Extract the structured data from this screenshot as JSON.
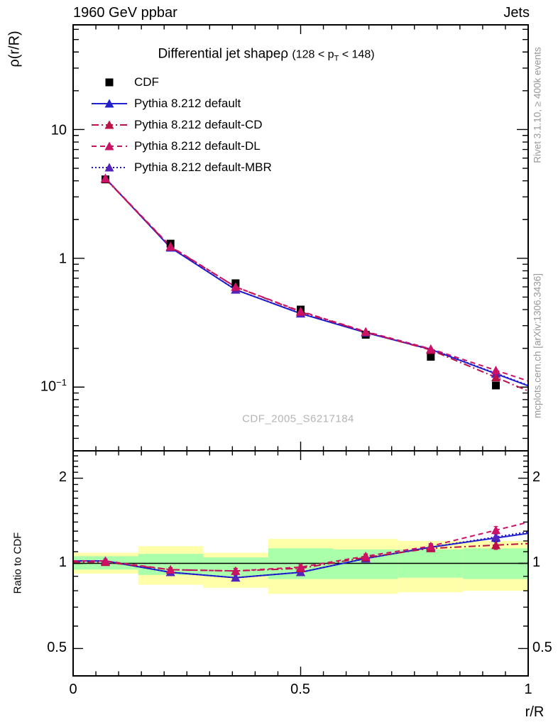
{
  "header": {
    "left": "1960 GeV ppbar",
    "right": "Jets"
  },
  "side_notes": {
    "rivet": "Rivet 3.1.10, ≥ 400k events",
    "mcplots": "mcplots.cern.ch [arXiv:1306.3436]"
  },
  "watermark": "CDF_2005_S6217184",
  "title": {
    "main": "Differential jet shapeρ",
    "range_pre": "(128 < p",
    "range_sub": "T",
    "range_post": " < 148)"
  },
  "axes": {
    "y_label": "ρ(r/R)",
    "ratio_label": "Ratio to CDF",
    "x_label": "r/R",
    "main_y_ticks": [
      {
        "text": "10",
        "sup": ""
      },
      {
        "text": "1",
        "sup": ""
      },
      {
        "text": "10",
        "sup": "−1"
      }
    ],
    "ratio_y_ticks": [
      "2",
      "1",
      "0.5"
    ],
    "x_ticks": [
      "0",
      "0.5",
      "1"
    ]
  },
  "chart_data": {
    "type": "line",
    "title": "Differential jet shape rho (128 < pT < 148)",
    "xlabel": "r/R",
    "ylabel": "rho(r/R)",
    "ylabel_ratio": "Ratio to CDF",
    "xlim": [
      0,
      1
    ],
    "ylim_main": [
      0.032,
      65
    ],
    "ylim_ratio": [
      0.4,
      2.5
    ],
    "yscale_main": "log",
    "yscale_ratio": "log",
    "grid": false,
    "legend_position": "top-left",
    "x": [
      0.071,
      0.214,
      0.357,
      0.5,
      0.643,
      0.786,
      0.929
    ],
    "bin_edges": [
      0,
      0.143,
      0.286,
      0.429,
      0.571,
      0.714,
      0.857,
      1.0
    ],
    "series": [
      {
        "label": "CDF",
        "kind": "data",
        "marker": "square",
        "color": "#000000",
        "line": "none",
        "values": [
          4.1,
          1.3,
          0.64,
          0.4,
          0.255,
          0.172,
          0.103
        ]
      },
      {
        "label": "Pythia 8.212 default",
        "kind": "mc",
        "marker": "triangle",
        "color": "#2222cc",
        "line_color": "#2222cc",
        "line": "solid",
        "values": [
          4.18,
          1.21,
          0.57,
          0.372,
          0.265,
          0.196,
          0.127
        ],
        "ratio": [
          1.02,
          0.93,
          0.89,
          0.93,
          1.04,
          1.14,
          1.23
        ]
      },
      {
        "label": "Pythia 8.212 default-CD",
        "kind": "mc",
        "marker": "triangle",
        "color": "#bb1144",
        "line_color": "#bb1144",
        "line": "dashdot",
        "values": [
          4.14,
          1.23,
          0.6,
          0.384,
          0.268,
          0.194,
          0.119
        ],
        "ratio": [
          1.01,
          0.95,
          0.94,
          0.96,
          1.05,
          1.13,
          1.16
        ]
      },
      {
        "label": "Pythia 8.212 default-DL",
        "kind": "mc",
        "marker": "triangle",
        "color": "#cc1166",
        "line_color": "#cc1166",
        "line": "dashed",
        "values": [
          4.18,
          1.24,
          0.6,
          0.388,
          0.27,
          0.198,
          0.135
        ],
        "ratio": [
          1.02,
          0.95,
          0.94,
          0.97,
          1.06,
          1.15,
          1.31
        ]
      },
      {
        "label": "Pythia 8.212 default-MBR",
        "kind": "mc",
        "marker": "triangle",
        "color": "#5522bb",
        "line_color": "#2211cc",
        "line": "dotted",
        "values": [
          4.18,
          1.215,
          0.572,
          0.373,
          0.266,
          0.197,
          0.128
        ],
        "ratio": [
          1.02,
          0.93,
          0.89,
          0.93,
          1.04,
          1.14,
          1.24
        ]
      }
    ],
    "ratio_errors": [
      0.015,
      0.015,
      0.02,
      0.02,
      0.02,
      0.025,
      0.04
    ],
    "ratio_bands": {
      "yellow_color": "#ffffaa",
      "green_color": "#aaffaa",
      "bins": [
        {
          "ylo": 0.92,
          "yhi": 1.09,
          "glo": 0.95,
          "ghi": 1.06
        },
        {
          "ylo": 0.84,
          "yhi": 1.15,
          "glo": 0.91,
          "ghi": 1.08
        },
        {
          "ylo": 0.82,
          "yhi": 1.09,
          "glo": 0.9,
          "ghi": 1.05
        },
        {
          "ylo": 0.78,
          "yhi": 1.22,
          "glo": 0.88,
          "ghi": 1.13
        },
        {
          "ylo": 0.78,
          "yhi": 1.22,
          "glo": 0.88,
          "ghi": 1.12
        },
        {
          "ylo": 0.79,
          "yhi": 1.2,
          "glo": 0.89,
          "ghi": 1.12
        },
        {
          "ylo": 0.8,
          "yhi": 1.2,
          "glo": 0.88,
          "ghi": 1.13
        }
      ]
    }
  }
}
